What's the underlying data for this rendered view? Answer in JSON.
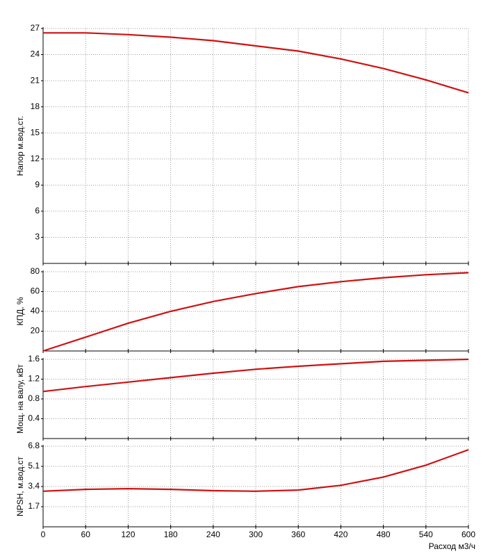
{
  "chart_data": [
    {
      "type": "line",
      "ylabel": "Напор м.вод.ст.",
      "color": "#d01010",
      "x": [
        0,
        60,
        120,
        180,
        240,
        300,
        360,
        420,
        480,
        540,
        600
      ],
      "values": [
        26.5,
        26.5,
        26.3,
        26.0,
        25.6,
        25.0,
        24.4,
        23.5,
        22.4,
        21.1,
        19.6
      ],
      "xlim": [
        0,
        600
      ],
      "ylim": [
        0,
        27
      ],
      "xticks": [
        0,
        60,
        120,
        180,
        240,
        300,
        360,
        420,
        480,
        540,
        600
      ],
      "yticks": [
        3,
        6,
        9,
        12,
        15,
        18,
        21,
        24,
        27
      ],
      "grid": true
    },
    {
      "type": "line",
      "ylabel": "КПД, %",
      "color": "#d01010",
      "x": [
        0,
        60,
        120,
        180,
        240,
        300,
        360,
        420,
        480,
        540,
        600
      ],
      "values": [
        0,
        14,
        28,
        40,
        50,
        58,
        65,
        70,
        74,
        77,
        79
      ],
      "xlim": [
        0,
        600
      ],
      "ylim": [
        0,
        80
      ],
      "xticks": [
        0,
        60,
        120,
        180,
        240,
        300,
        360,
        420,
        480,
        540,
        600
      ],
      "yticks": [
        20,
        40,
        60,
        80
      ],
      "grid": true
    },
    {
      "type": "line",
      "ylabel": "Мощ. на валу, кВт",
      "color": "#d01010",
      "x": [
        0,
        60,
        120,
        180,
        240,
        300,
        360,
        420,
        480,
        540,
        600
      ],
      "values": [
        0.95,
        1.05,
        1.14,
        1.23,
        1.32,
        1.4,
        1.46,
        1.51,
        1.56,
        1.58,
        1.6
      ],
      "xlim": [
        0,
        600
      ],
      "ylim": [
        0,
        1.6
      ],
      "xticks": [
        0,
        60,
        120,
        180,
        240,
        300,
        360,
        420,
        480,
        540,
        600
      ],
      "yticks": [
        0.4,
        0.8,
        1.2,
        1.6
      ],
      "grid": true
    },
    {
      "type": "line",
      "ylabel": "NPSH, м.вод.ст",
      "xlabel": "Расход м3/ч",
      "color": "#d01010",
      "x": [
        0,
        60,
        120,
        180,
        240,
        300,
        360,
        420,
        480,
        540,
        600
      ],
      "values": [
        3.0,
        3.16,
        3.22,
        3.16,
        3.05,
        3.0,
        3.1,
        3.5,
        4.2,
        5.2,
        6.5
      ],
      "xlim": [
        0,
        600
      ],
      "ylim": [
        0,
        6.8
      ],
      "xticks": [
        0,
        60,
        120,
        180,
        240,
        300,
        360,
        420,
        480,
        540,
        600
      ],
      "yticks": [
        1.7,
        3.4,
        5.1,
        6.8
      ],
      "grid": true
    }
  ]
}
